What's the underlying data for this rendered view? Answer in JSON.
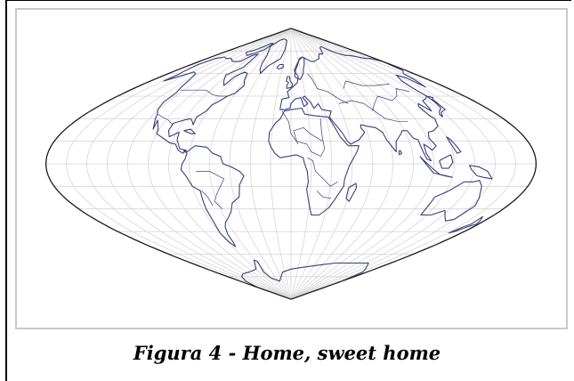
{
  "caption": "Figura 4 - Home, sweet home",
  "map": {
    "projection": "sinusoidal",
    "graticule": true,
    "colors": {
      "coastline": "#3a3f7a",
      "graticule": "#d6d6d6",
      "outline": "#1c1c1c",
      "panel_border": "#c9c9c9"
    }
  }
}
